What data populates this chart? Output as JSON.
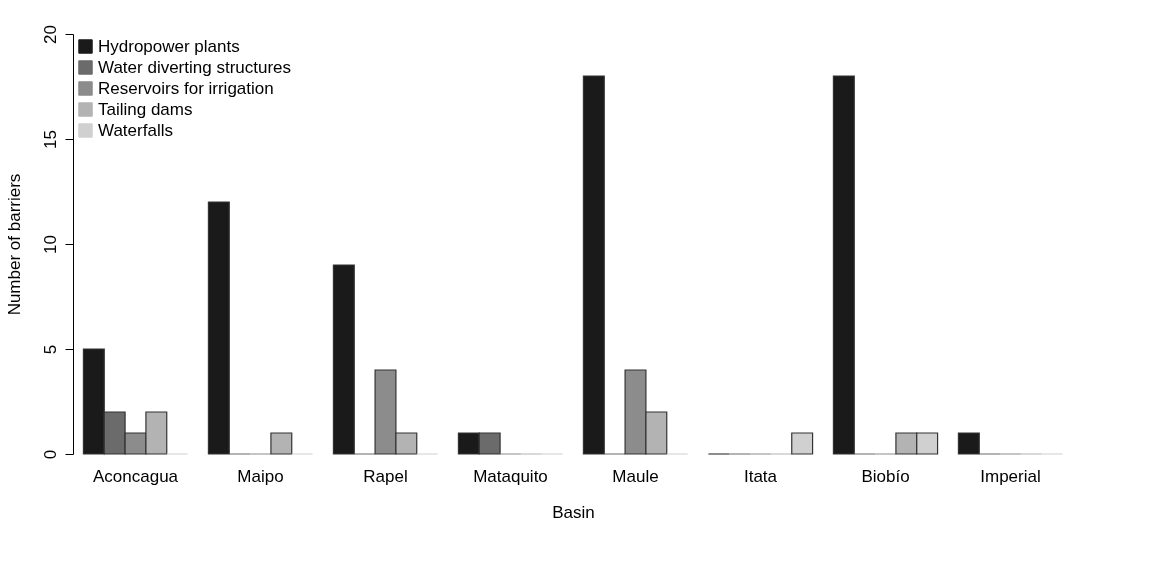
{
  "chart_data": {
    "type": "bar",
    "xlabel": "Basin",
    "ylabel": "Number of barriers",
    "categories": [
      "Aconcagua",
      "Maipo",
      "Rapel",
      "Mataquito",
      "Maule",
      "Itata",
      "Biobío",
      "Imperial"
    ],
    "series": [
      {
        "name": "Hydropower plants",
        "color": "#1a1a1a",
        "values": [
          5,
          12,
          9,
          1,
          18,
          0,
          18,
          1
        ]
      },
      {
        "name": "Water diverting structures",
        "color": "#6b6b6b",
        "values": [
          2,
          0,
          0,
          1,
          0,
          0,
          0,
          0
        ]
      },
      {
        "name": "Reservoirs for irrigation",
        "color": "#8c8c8c",
        "values": [
          1,
          0,
          4,
          0,
          4,
          0,
          0,
          0
        ]
      },
      {
        "name": "Tailing dams",
        "color": "#b3b3b3",
        "values": [
          2,
          1,
          1,
          0,
          2,
          0,
          1,
          0
        ]
      },
      {
        "name": "Waterfalls",
        "color": "#d0d0d0",
        "values": [
          0,
          0,
          0,
          0,
          0,
          1,
          1,
          0
        ]
      }
    ],
    "ylim": [
      0,
      20
    ],
    "yticks": [
      0,
      5,
      10,
      15,
      20
    ],
    "grid": false,
    "legend": "top left"
  }
}
